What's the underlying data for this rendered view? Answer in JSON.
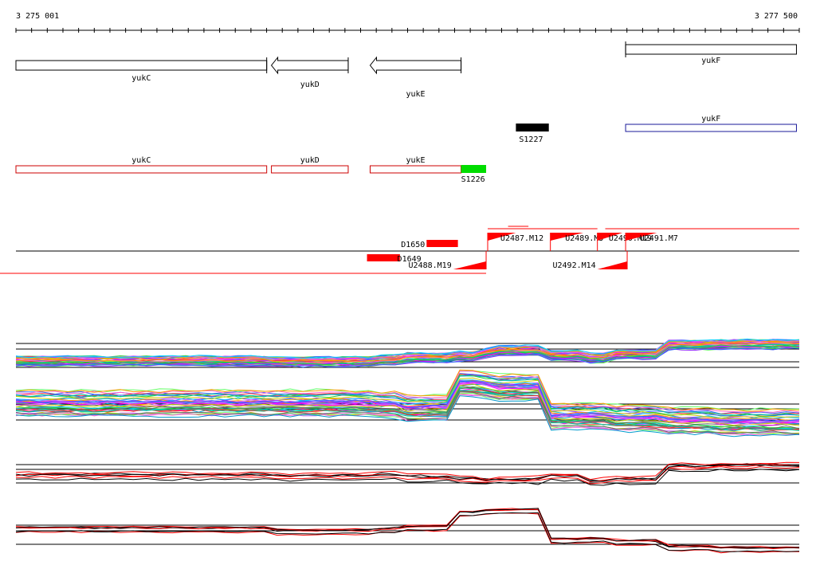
{
  "ruler": {
    "start_label": "3 275 001",
    "end_label": "3 277 500",
    "start": 3275001,
    "end": 3277500
  },
  "colors": {
    "gene_outline": "#000000",
    "transcript_outline": "#cc0000",
    "sense_gene_outline": "#1a1a99",
    "segment_red": "#ff0000",
    "segment_green": "#00dd00",
    "segment_black": "#000000",
    "profile_red": "#ff0000",
    "profile_black": "#000000"
  },
  "genes": [
    {
      "name": "yukC",
      "start": 3275001,
      "end": 3275801,
      "strand": "-"
    },
    {
      "name": "yukD",
      "start": 3275816,
      "end": 3276061,
      "strand": "-"
    },
    {
      "name": "yukE",
      "start": 3276131,
      "end": 3276421,
      "strand": "-"
    },
    {
      "name": "yukF",
      "start": 3276946,
      "end": 3277491,
      "strand": "+"
    }
  ],
  "annotations": [
    {
      "name": "yukF",
      "start": 3276946,
      "end": 3277491,
      "type": "sense"
    },
    {
      "name": "yukC",
      "start": 3275001,
      "end": 3275801,
      "type": "antisense"
    },
    {
      "name": "yukD",
      "start": 3275816,
      "end": 3276061,
      "type": "antisense"
    },
    {
      "name": "yukE",
      "start": 3276131,
      "end": 3276421,
      "type": "antisense"
    }
  ],
  "segments": [
    {
      "name": "S1227",
      "start": 3276596,
      "end": 3276701,
      "color": "black"
    },
    {
      "name": "S1226",
      "start": 3276421,
      "end": 3276501,
      "color": "green"
    },
    {
      "name": "D1650",
      "start": 3276311,
      "end": 3276411,
      "color": "red"
    },
    {
      "name": "D1649",
      "start": 3276121,
      "end": 3276226,
      "color": "red"
    }
  ],
  "promoters": [
    {
      "name": "U2487.M12",
      "start": 3276506,
      "end": 3276596
    },
    {
      "name": "U2489.M5",
      "start": 3276706,
      "end": 3276811
    },
    {
      "name": "U2490.M19",
      "start": 3276856,
      "end": 3276936
    },
    {
      "name": "U2491.M7",
      "start": 3276946,
      "end": 3277046
    },
    {
      "name": "U2488.M19",
      "start": 3276396,
      "end": 3276501
    },
    {
      "name": "U2492.M14",
      "start": 3276856,
      "end": 3276951
    }
  ],
  "profile_boundaries": [
    3275001,
    3275826,
    3276126,
    3276231,
    3276396,
    3276486,
    3276526,
    3276696,
    3276826,
    3276906,
    3277051,
    3277231,
    3277491
  ]
}
